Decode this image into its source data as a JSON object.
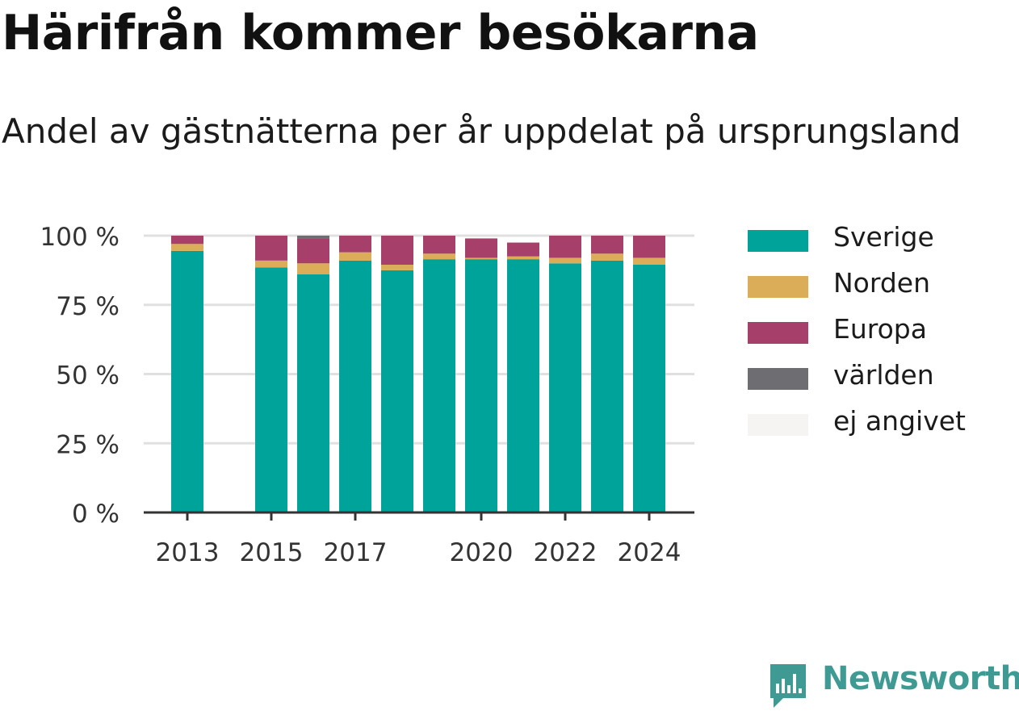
{
  "title": "Härifrån kommer besökarna",
  "subtitle": "Andel av gästnätterna per år uppdelat på ursprungsland",
  "brand": {
    "name": "Newsworthy",
    "color": "#3f9a93"
  },
  "chart_data": {
    "type": "bar",
    "stacked": true,
    "categories": [
      "2013",
      "2014",
      "2015",
      "2016",
      "2017",
      "2018",
      "2019",
      "2020",
      "2021",
      "2022",
      "2023",
      "2024"
    ],
    "x_tick_labels": [
      "2013",
      "",
      "2015",
      "",
      "2017",
      "",
      "",
      "2020",
      "",
      "2022",
      "",
      "2024"
    ],
    "series": [
      {
        "name": "Sverige",
        "color": "#00a39a",
        "values": [
          94.5,
          null,
          88.5,
          86,
          91,
          87.5,
          91.5,
          91.5,
          91.5,
          90,
          91,
          89.5
        ]
      },
      {
        "name": "Norden",
        "color": "#dcad59",
        "values": [
          2.5,
          null,
          2.5,
          4,
          3,
          2,
          2,
          0.5,
          1,
          2,
          2.5,
          2.5
        ]
      },
      {
        "name": "Europa",
        "color": "#a6406a",
        "values": [
          3,
          null,
          9,
          9,
          6,
          10.5,
          6.5,
          7,
          5,
          8,
          6.5,
          8
        ]
      },
      {
        "name": "världen",
        "color": "#6e6d72",
        "values": [
          0,
          null,
          0,
          1,
          0,
          0,
          0,
          0,
          0,
          0,
          0,
          0
        ]
      },
      {
        "name": "ej angivet",
        "color": "#f5f4f2",
        "values": [
          0,
          null,
          0,
          0,
          0,
          0,
          0,
          0,
          0,
          0,
          0,
          0
        ]
      }
    ],
    "yticks": [
      "0 %",
      "25 %",
      "50 %",
      "75 %",
      "100 %"
    ],
    "ylim": [
      0,
      100
    ],
    "grid": true,
    "legend": "right"
  }
}
